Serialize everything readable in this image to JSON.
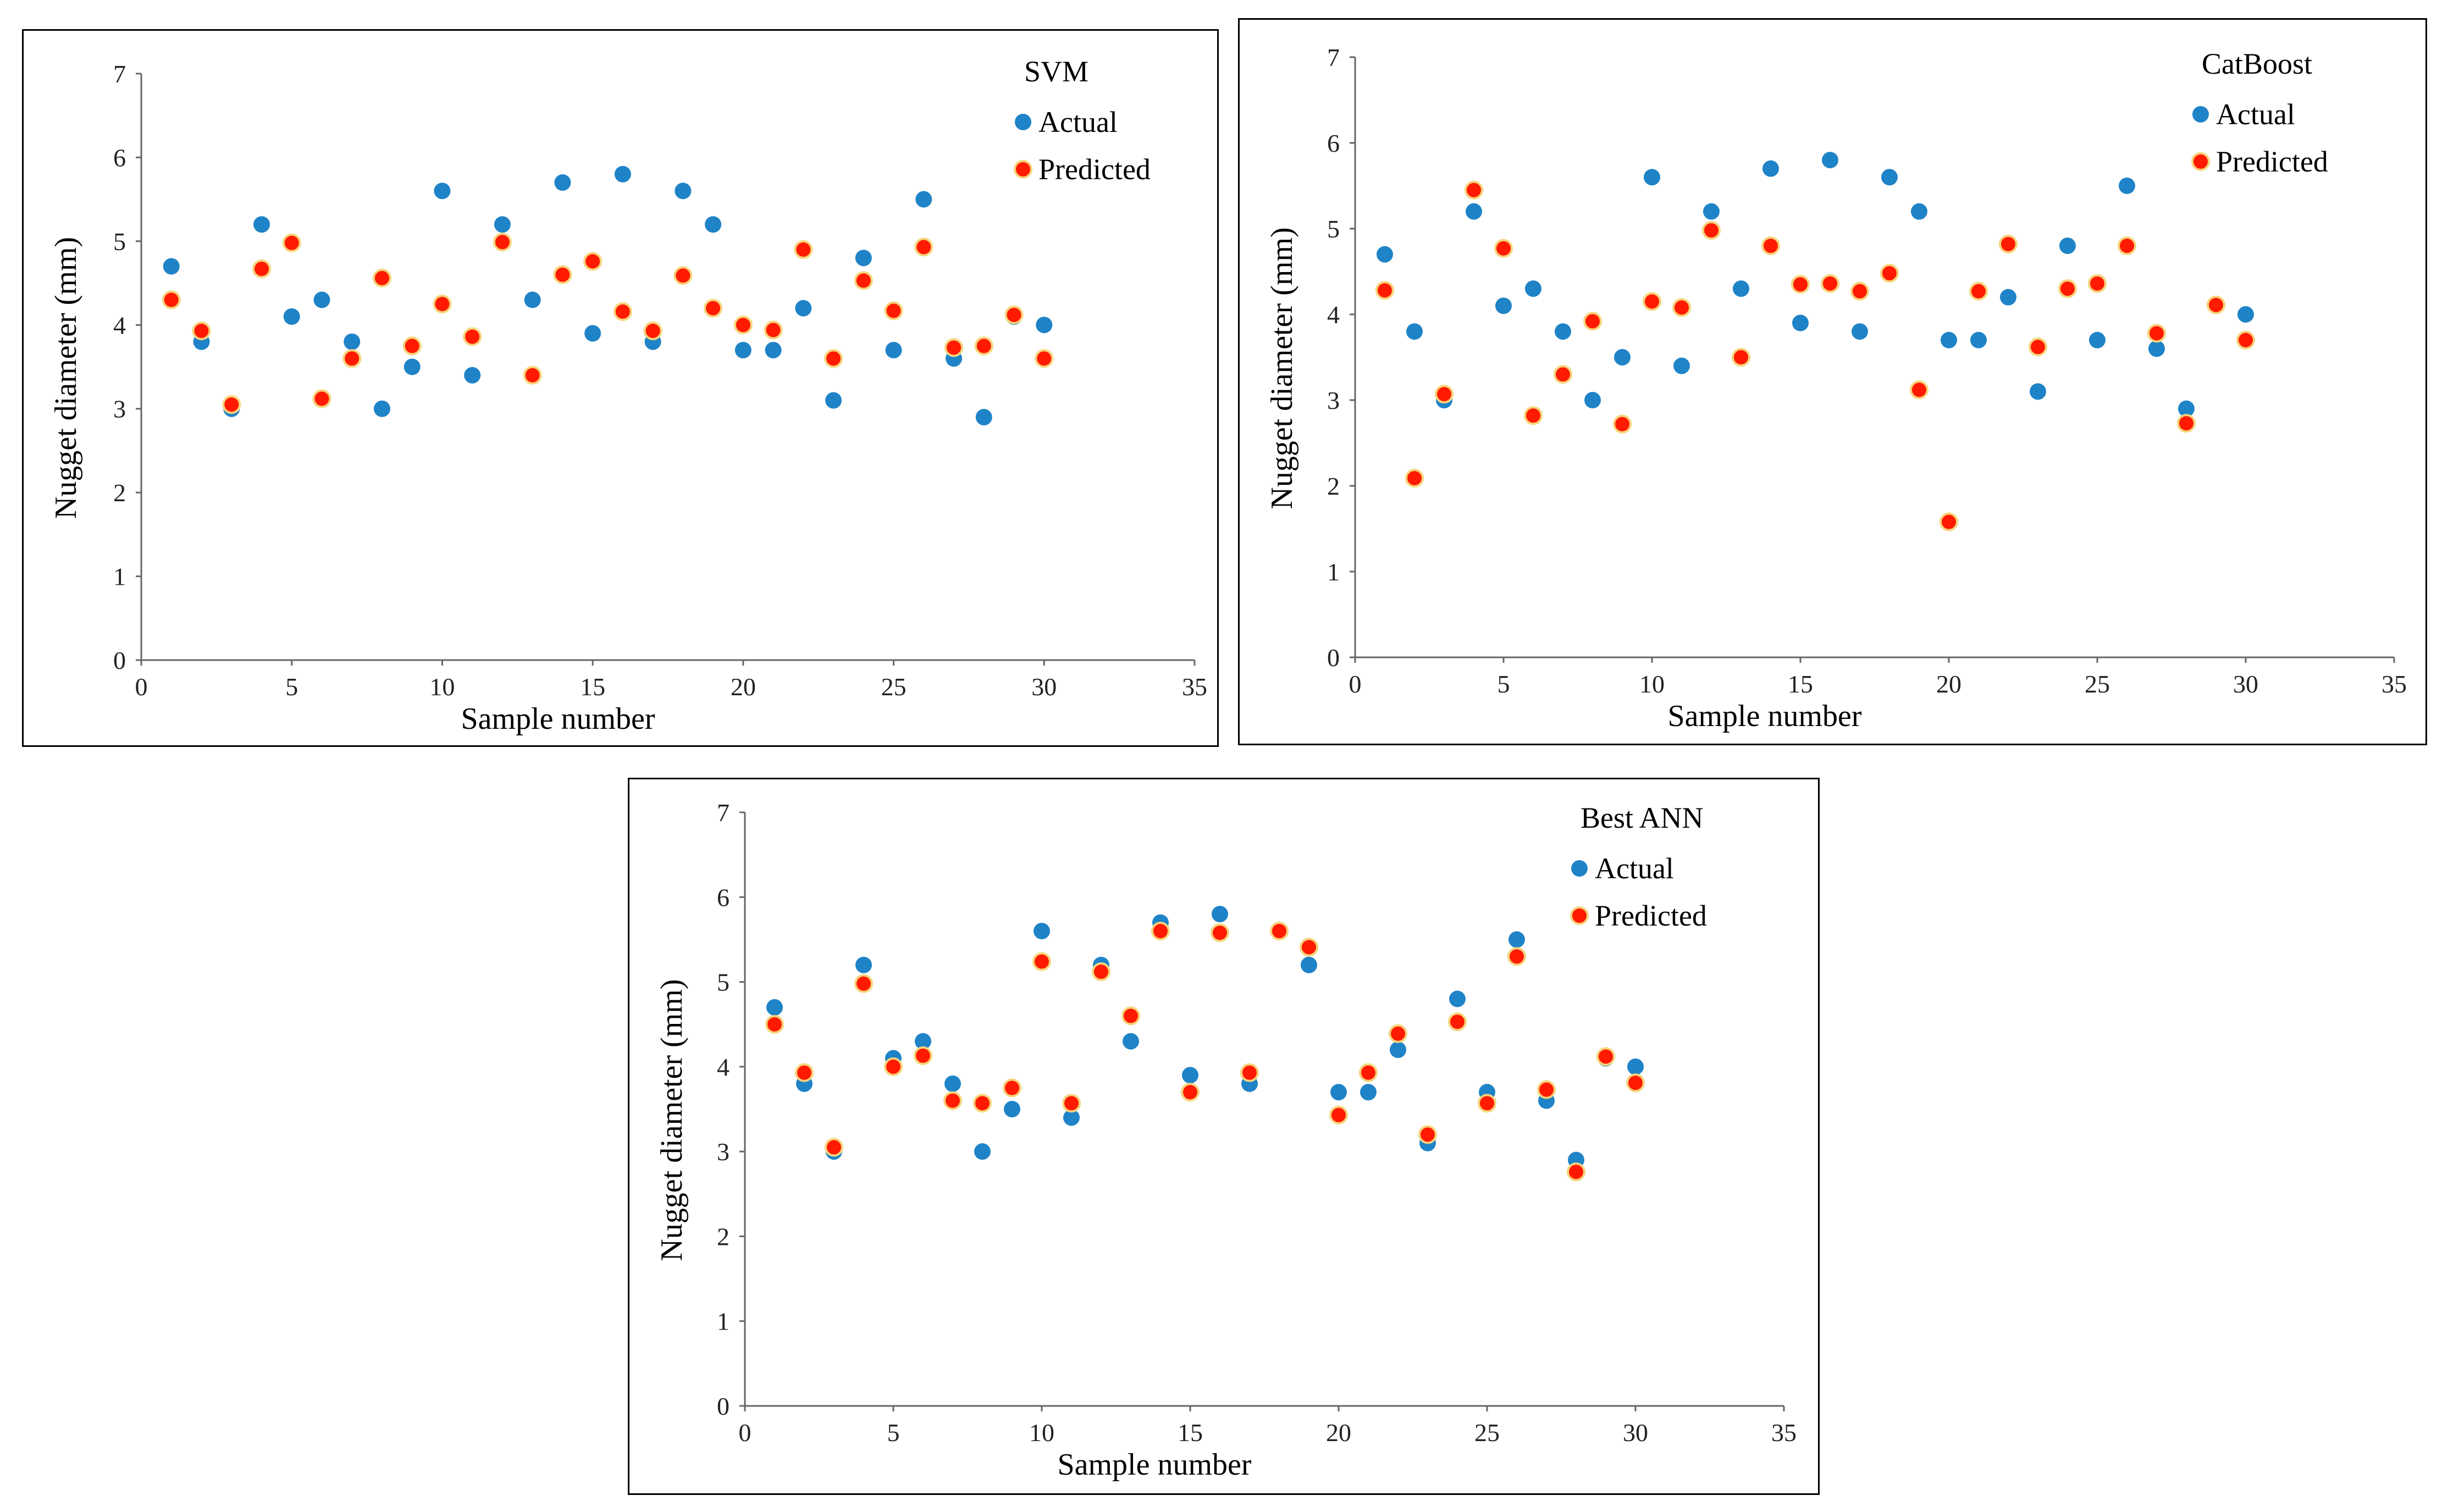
{
  "colors": {
    "actual": "#1f83c7",
    "predicted_fill": "#ff1a00",
    "predicted_ring": "#f7d37a",
    "axis": "#666666"
  },
  "chart_data": [
    {
      "type": "scatter",
      "title": "SVM",
      "xlabel": "Sample number",
      "ylabel": "Nugget diameter (mm)",
      "xlim": [
        0,
        35
      ],
      "ylim": [
        0,
        7
      ],
      "xticks": [
        0,
        5,
        10,
        15,
        20,
        25,
        30,
        35
      ],
      "yticks": [
        0,
        1,
        2,
        3,
        4,
        5,
        6,
        7
      ],
      "grid": false,
      "legend_position": "top-right",
      "series": [
        {
          "name": "Actual",
          "x": [
            1,
            2,
            3,
            4,
            5,
            6,
            7,
            8,
            9,
            10,
            11,
            12,
            13,
            14,
            15,
            16,
            17,
            18,
            19,
            20,
            21,
            22,
            23,
            24,
            25,
            26,
            27,
            28,
            29,
            30
          ],
          "y": [
            4.7,
            3.8,
            3.0,
            5.2,
            4.1,
            4.3,
            3.8,
            3.0,
            3.5,
            5.6,
            3.4,
            5.2,
            4.3,
            5.7,
            3.9,
            5.8,
            3.8,
            5.6,
            5.2,
            3.7,
            3.7,
            4.2,
            3.1,
            4.8,
            3.7,
            5.5,
            3.6,
            2.9,
            4.1,
            4.0
          ]
        },
        {
          "name": "Predicted",
          "x": [
            1,
            2,
            3,
            4,
            5,
            6,
            7,
            8,
            9,
            10,
            11,
            12,
            13,
            14,
            15,
            16,
            17,
            18,
            19,
            20,
            21,
            22,
            23,
            24,
            25,
            26,
            27,
            28,
            29,
            30
          ],
          "y": [
            4.3,
            3.93,
            3.05,
            4.67,
            4.98,
            3.12,
            3.6,
            4.56,
            3.75,
            4.25,
            3.86,
            4.99,
            3.4,
            4.6,
            4.76,
            4.16,
            3.93,
            4.59,
            4.2,
            4.0,
            3.94,
            4.9,
            3.6,
            4.53,
            4.17,
            4.93,
            3.73,
            3.75,
            4.12,
            3.6
          ]
        }
      ]
    },
    {
      "type": "scatter",
      "title": "CatBoost",
      "xlabel": "Sample number",
      "ylabel": "Nugget diameter (mm)",
      "xlim": [
        0,
        35
      ],
      "ylim": [
        0,
        7
      ],
      "xticks": [
        0,
        5,
        10,
        15,
        20,
        25,
        30,
        35
      ],
      "yticks": [
        0,
        1,
        2,
        3,
        4,
        5,
        6,
        7
      ],
      "grid": false,
      "legend_position": "top-right",
      "series": [
        {
          "name": "Actual",
          "x": [
            1,
            2,
            3,
            4,
            5,
            6,
            7,
            8,
            9,
            10,
            11,
            12,
            13,
            14,
            15,
            16,
            17,
            18,
            19,
            20,
            21,
            22,
            23,
            24,
            25,
            26,
            27,
            28,
            29,
            30
          ],
          "y": [
            4.7,
            3.8,
            3.0,
            5.2,
            4.1,
            4.3,
            3.8,
            3.0,
            3.5,
            5.6,
            3.4,
            5.2,
            4.3,
            5.7,
            3.9,
            5.8,
            3.8,
            5.6,
            5.2,
            3.7,
            3.7,
            4.2,
            3.1,
            4.8,
            3.7,
            5.5,
            3.6,
            2.9,
            4.1,
            4.0
          ]
        },
        {
          "name": "Predicted",
          "x": [
            1,
            2,
            3,
            4,
            5,
            6,
            7,
            8,
            9,
            10,
            11,
            12,
            13,
            14,
            15,
            16,
            17,
            18,
            19,
            20,
            21,
            22,
            23,
            24,
            25,
            26,
            27,
            28,
            29,
            30
          ],
          "y": [
            4.28,
            2.09,
            3.07,
            5.45,
            4.77,
            2.82,
            3.3,
            3.92,
            2.72,
            4.15,
            4.08,
            4.98,
            3.5,
            4.8,
            4.35,
            4.36,
            4.27,
            4.48,
            3.12,
            1.58,
            4.27,
            4.82,
            3.62,
            4.3,
            4.36,
            4.8,
            3.78,
            2.73,
            4.11,
            3.7
          ]
        }
      ]
    },
    {
      "type": "scatter",
      "title": "Best ANN",
      "xlabel": "Sample number",
      "ylabel": "Nugget diameter (mm)",
      "xlim": [
        0,
        35
      ],
      "ylim": [
        0,
        7
      ],
      "xticks": [
        0,
        5,
        10,
        15,
        20,
        25,
        30,
        35
      ],
      "yticks": [
        0,
        1,
        2,
        3,
        4,
        5,
        6,
        7
      ],
      "grid": false,
      "legend_position": "top-right",
      "series": [
        {
          "name": "Actual",
          "x": [
            1,
            2,
            3,
            4,
            5,
            6,
            7,
            8,
            9,
            10,
            11,
            12,
            13,
            14,
            15,
            16,
            17,
            18,
            19,
            20,
            21,
            22,
            23,
            24,
            25,
            26,
            27,
            28,
            29,
            30
          ],
          "y": [
            4.7,
            3.8,
            3.0,
            5.2,
            4.1,
            4.3,
            3.8,
            3.0,
            3.5,
            5.6,
            3.4,
            5.2,
            4.3,
            5.7,
            3.9,
            5.8,
            3.8,
            5.6,
            5.2,
            3.7,
            3.7,
            4.2,
            3.1,
            4.8,
            3.7,
            5.5,
            3.6,
            2.9,
            4.1,
            4.0
          ]
        },
        {
          "name": "Predicted",
          "x": [
            1,
            2,
            3,
            4,
            5,
            6,
            7,
            8,
            9,
            10,
            11,
            12,
            13,
            14,
            15,
            16,
            17,
            18,
            19,
            20,
            21,
            22,
            23,
            24,
            25,
            26,
            27,
            28,
            29,
            30
          ],
          "y": [
            4.5,
            3.93,
            3.05,
            4.98,
            4.0,
            4.13,
            3.6,
            3.57,
            3.75,
            5.24,
            3.57,
            5.12,
            4.6,
            5.6,
            3.7,
            5.58,
            3.93,
            5.6,
            5.41,
            3.43,
            3.93,
            4.39,
            3.2,
            4.53,
            3.57,
            5.3,
            3.73,
            2.76,
            4.12,
            3.81
          ]
        }
      ]
    }
  ]
}
